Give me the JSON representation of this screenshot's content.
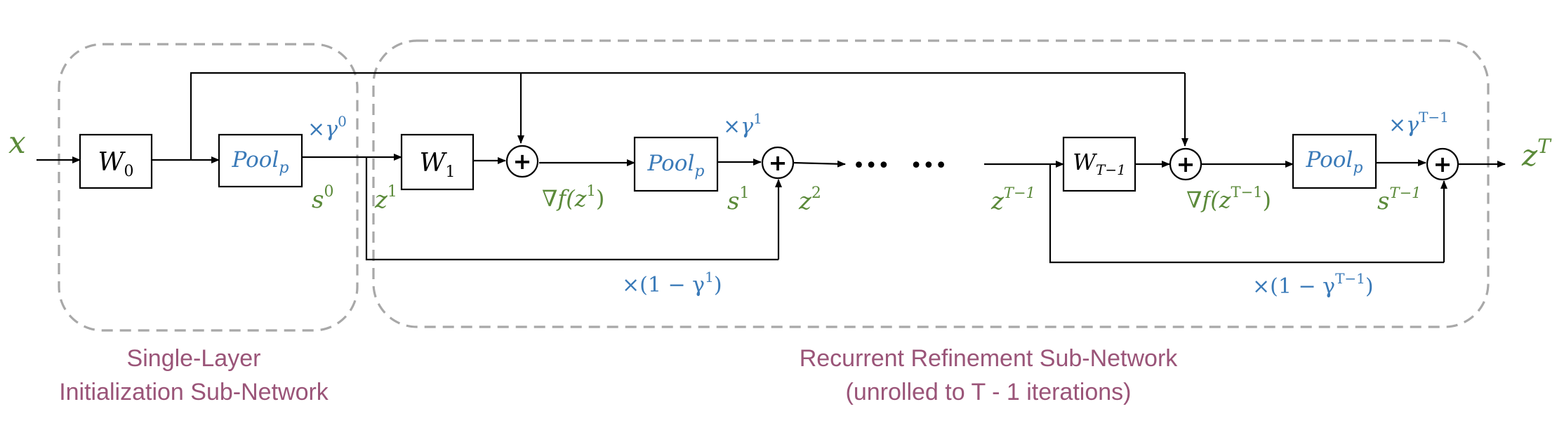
{
  "colors": {
    "green": "#5b8a3a",
    "blue": "#3a7ab8",
    "plum": "#9a5478",
    "dashed_border": "#a8a8a8"
  },
  "input_label": "x",
  "output_label": "z",
  "output_sup": "T",
  "boxes": {
    "w0": {
      "main": "W",
      "sub": "0"
    },
    "pool0": {
      "main": "Pool",
      "sub": "p"
    },
    "w1": {
      "main": "W",
      "sub": "1"
    },
    "pool1": {
      "main": "Pool",
      "sub": "p"
    },
    "wt": {
      "main": "W",
      "sub": "T−1"
    },
    "poolt": {
      "main": "Pool",
      "sub": "p"
    }
  },
  "adder_symbol": "+",
  "ellipsis": "•••   •••",
  "variables": {
    "s0": {
      "main": "s",
      "sup": "0"
    },
    "z1": {
      "main": "z",
      "sup": "1"
    },
    "grad1": {
      "main": "∇f(z",
      "sup": "1",
      "tail": ")"
    },
    "s1": {
      "main": "s",
      "sup": "1"
    },
    "z2": {
      "main": "z",
      "sup": "2"
    },
    "zt1": {
      "main": "z",
      "sup": "T−1"
    },
    "gradt": {
      "main": "∇f(z",
      "sup": "T−1",
      "tail": ")"
    },
    "st1": {
      "main": "s",
      "sup": "T−1"
    }
  },
  "weights": {
    "g0": {
      "main": "×γ",
      "sup": "0"
    },
    "g1": {
      "main": "×γ",
      "sup": "1"
    },
    "gt": {
      "main": "×γ",
      "sup": "T−1"
    },
    "one_minus_g1": {
      "main": "×(1 − γ",
      "sup": "1",
      "tail": ")"
    },
    "one_minus_gt": {
      "main": "×(1 − γ",
      "sup": "T−1",
      "tail": ")"
    }
  },
  "captions": {
    "left_line1": "Single-Layer",
    "left_line2": "Initialization Sub-Network",
    "right_line1": "Recurrent Refinement Sub-Network",
    "right_line2": "(unrolled to T - 1 iterations)"
  }
}
